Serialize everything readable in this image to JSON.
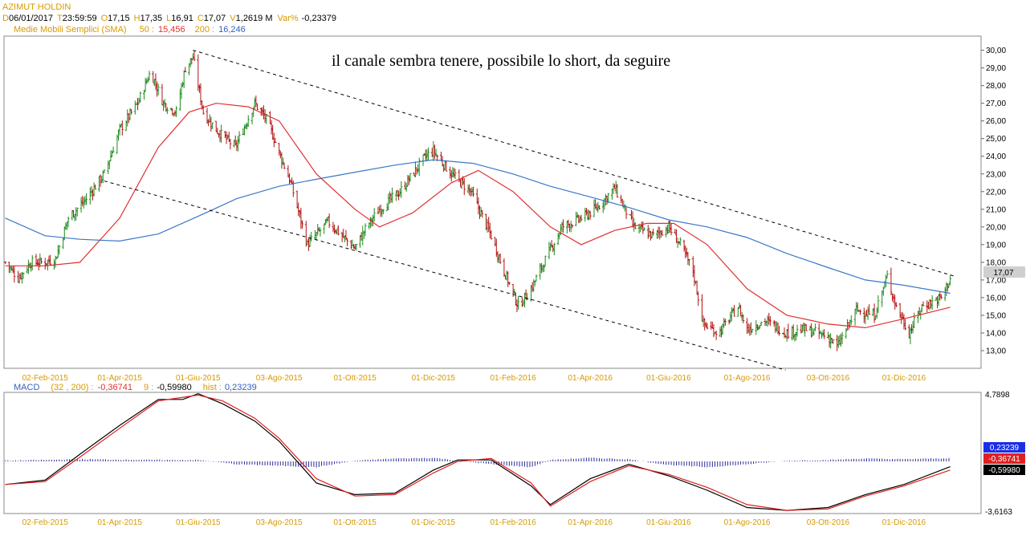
{
  "header": {
    "symbol": "AZIMUT HOLDIN",
    "d_label": "D",
    "d_value": "06/01/2017",
    "t_label": "T",
    "t_value": "23:59:59",
    "o_label": "O",
    "o_value": "17,15",
    "h_label": "H",
    "h_value": "17,35",
    "l_label": "L",
    "l_value": "16,91",
    "c_label": "C",
    "c_value": "17,07",
    "v_label": "V",
    "v_value": "1,2619 M",
    "var_label": "Var%",
    "var_value": "-0,23379",
    "sma_label": "Medie Mobili Semplici (SMA)",
    "sma50_label": "50 :",
    "sma50_value": "15,456",
    "sma200_label": "200 :",
    "sma200_value": "16,246"
  },
  "annotation": "il canale sembra tenere, possibile lo short, da seguire",
  "price_tag": "17,07",
  "macd_header": {
    "label": "MACD",
    "params": "(32 , 200) :",
    "macd_value": "-0,36741",
    "signal_param": "9 :",
    "signal_value": "-0,59980",
    "hist_label": "hist :",
    "hist_value": "0,23239"
  },
  "macd_tags": {
    "hist": "0,23239",
    "macd": "-0,36741",
    "signal": "-0,59980"
  },
  "macd_axis": {
    "top": "4,7898",
    "bottom": "-3,6163"
  },
  "colors": {
    "bar": "#1c6b1c",
    "bar_up": "#1c8a1c",
    "bar_down": "#b31111",
    "sma50": "#e03030",
    "sma200": "#3a78c8",
    "macd_line": "#000000",
    "signal_line": "#e02020",
    "histogram": "#2a2a9a",
    "label_gold": "#d89a00",
    "label_blue": "#3060c0",
    "label_red": "#e03030"
  },
  "chart_data": [
    {
      "type": "candlestick",
      "title": "AZIMUT HOLDIN",
      "x_tick_labels": [
        "02-Feb-2015",
        "01-Apr-2015",
        "01-Giu-2015",
        "03-Ago-2015",
        "01-Ott-2015",
        "01-Dic-2015",
        "01-Feb-2016",
        "01-Apr-2016",
        "01-Giu-2016",
        "01-Ago-2016",
        "03-Ott-2016",
        "01-Dic-2016"
      ],
      "y_ticks": [
        "13,00",
        "14,00",
        "15,00",
        "16,00",
        "17,00",
        "18,00",
        "19,00",
        "20,00",
        "21,00",
        "22,00",
        "23,00",
        "24,00",
        "25,00",
        "26,00",
        "27,00",
        "28,00",
        "29,00",
        "30,00"
      ],
      "ylim": [
        12.0,
        30.8
      ],
      "price_path": [
        [
          "2015-01-02",
          18.0
        ],
        [
          "2015-01-12",
          17.1
        ],
        [
          "2015-01-22",
          18.0
        ],
        [
          "2015-02-02",
          18.0
        ],
        [
          "2015-02-10",
          18.2
        ],
        [
          "2015-02-20",
          20.5
        ],
        [
          "2015-03-05",
          21.5
        ],
        [
          "2015-03-20",
          23.0
        ],
        [
          "2015-04-01",
          25.5
        ],
        [
          "2015-04-15",
          27.0
        ],
        [
          "2015-04-25",
          28.8
        ],
        [
          "2015-05-05",
          27.0
        ],
        [
          "2015-05-15",
          26.5
        ],
        [
          "2015-05-22",
          29.0
        ],
        [
          "2015-05-28",
          29.6
        ],
        [
          "2015-06-05",
          26.5
        ],
        [
          "2015-06-15",
          25.5
        ],
        [
          "2015-06-30",
          24.5
        ],
        [
          "2015-07-15",
          27.0
        ],
        [
          "2015-07-25",
          26.0
        ],
        [
          "2015-08-03",
          24.2
        ],
        [
          "2015-08-12",
          22.5
        ],
        [
          "2015-08-25",
          19.0
        ],
        [
          "2015-09-10",
          20.3
        ],
        [
          "2015-09-25",
          19.2
        ],
        [
          "2015-10-01",
          18.8
        ],
        [
          "2015-10-10",
          20.0
        ],
        [
          "2015-10-20",
          21.0
        ],
        [
          "2015-11-05",
          22.0
        ],
        [
          "2015-11-25",
          24.0
        ],
        [
          "2015-12-01",
          24.3
        ],
        [
          "2015-12-15",
          23.0
        ],
        [
          "2015-12-30",
          22.0
        ],
        [
          "2016-01-15",
          19.5
        ],
        [
          "2016-01-25",
          17.5
        ],
        [
          "2016-02-05",
          15.5
        ],
        [
          "2016-02-15",
          16.5
        ],
        [
          "2016-02-25",
          18.0
        ],
        [
          "2016-03-10",
          20.0
        ],
        [
          "2016-03-25",
          20.5
        ],
        [
          "2016-04-05",
          21.0
        ],
        [
          "2016-04-20",
          22.2
        ],
        [
          "2016-04-28",
          21.0
        ],
        [
          "2016-05-05",
          20.0
        ],
        [
          "2016-05-20",
          19.5
        ],
        [
          "2016-06-01",
          20.0
        ],
        [
          "2016-06-10",
          19.0
        ],
        [
          "2016-06-20",
          17.5
        ],
        [
          "2016-06-28",
          14.5
        ],
        [
          "2016-07-10",
          14.0
        ],
        [
          "2016-07-25",
          15.5
        ],
        [
          "2016-08-01",
          14.2
        ],
        [
          "2016-08-15",
          14.7
        ],
        [
          "2016-09-01",
          14.0
        ],
        [
          "2016-09-15",
          14.2
        ],
        [
          "2016-10-03",
          13.8
        ],
        [
          "2016-10-10",
          13.2
        ],
        [
          "2016-10-25",
          15.3
        ],
        [
          "2016-11-08",
          15.0
        ],
        [
          "2016-11-18",
          17.2
        ],
        [
          "2016-11-25",
          15.5
        ],
        [
          "2016-12-05",
          14.0
        ],
        [
          "2016-12-15",
          15.5
        ],
        [
          "2016-12-30",
          16.0
        ],
        [
          "2017-01-06",
          17.07
        ]
      ]
    },
    {
      "type": "line",
      "title": "SMA 50",
      "values": [
        [
          "2015-01-02",
          17.8
        ],
        [
          "2015-02-02",
          17.8
        ],
        [
          "2015-03-01",
          18.0
        ],
        [
          "2015-04-01",
          20.5
        ],
        [
          "2015-05-01",
          24.5
        ],
        [
          "2015-05-25",
          26.5
        ],
        [
          "2015-06-15",
          27.0
        ],
        [
          "2015-07-10",
          26.8
        ],
        [
          "2015-08-03",
          26.0
        ],
        [
          "2015-09-01",
          23.0
        ],
        [
          "2015-10-01",
          21.0
        ],
        [
          "2015-10-20",
          20.0
        ],
        [
          "2015-11-15",
          20.8
        ],
        [
          "2015-12-15",
          22.5
        ],
        [
          "2016-01-05",
          23.2
        ],
        [
          "2016-02-01",
          22.0
        ],
        [
          "2016-03-01",
          20.0
        ],
        [
          "2016-03-25",
          19.0
        ],
        [
          "2016-04-20",
          19.8
        ],
        [
          "2016-05-15",
          20.2
        ],
        [
          "2016-06-05",
          20.2
        ],
        [
          "2016-07-01",
          19.0
        ],
        [
          "2016-08-01",
          16.5
        ],
        [
          "2016-09-01",
          15.0
        ],
        [
          "2016-10-03",
          14.5
        ],
        [
          "2016-11-01",
          14.3
        ],
        [
          "2016-12-01",
          14.8
        ],
        [
          "2017-01-06",
          15.456
        ]
      ]
    },
    {
      "type": "line",
      "title": "SMA 200",
      "values": [
        [
          "2015-01-02",
          20.5
        ],
        [
          "2015-02-02",
          19.5
        ],
        [
          "2015-03-01",
          19.3
        ],
        [
          "2015-04-01",
          19.2
        ],
        [
          "2015-05-01",
          19.6
        ],
        [
          "2015-06-01",
          20.6
        ],
        [
          "2015-07-01",
          21.6
        ],
        [
          "2015-08-03",
          22.3
        ],
        [
          "2015-09-01",
          22.7
        ],
        [
          "2015-10-01",
          23.1
        ],
        [
          "2015-11-01",
          23.5
        ],
        [
          "2015-12-01",
          23.8
        ],
        [
          "2016-01-01",
          23.6
        ],
        [
          "2016-02-01",
          23.0
        ],
        [
          "2016-03-01",
          22.3
        ],
        [
          "2016-04-01",
          21.7
        ],
        [
          "2016-05-01",
          21.1
        ],
        [
          "2016-06-01",
          20.4
        ],
        [
          "2016-07-01",
          20.0
        ],
        [
          "2016-08-01",
          19.4
        ],
        [
          "2016-09-01",
          18.5
        ],
        [
          "2016-10-03",
          17.7
        ],
        [
          "2016-11-01",
          17.0
        ],
        [
          "2016-12-01",
          16.7
        ],
        [
          "2017-01-06",
          16.246
        ]
      ]
    },
    {
      "type": "line",
      "title": "MACD (32 , 200)",
      "ylim": [
        -3.6163,
        4.7898
      ],
      "values": [
        [
          "2015-01-02",
          -1.6
        ],
        [
          "2015-02-02",
          -1.3
        ],
        [
          "2015-03-01",
          0.5
        ],
        [
          "2015-04-01",
          2.5
        ],
        [
          "2015-05-01",
          4.3
        ],
        [
          "2015-05-20",
          4.3
        ],
        [
          "2015-06-01",
          4.7
        ],
        [
          "2015-06-20",
          4.0
        ],
        [
          "2015-07-15",
          2.8
        ],
        [
          "2015-08-03",
          1.4
        ],
        [
          "2015-09-01",
          -1.5
        ],
        [
          "2015-10-01",
          -2.3
        ],
        [
          "2015-11-01",
          -2.2
        ],
        [
          "2015-12-01",
          -0.6
        ],
        [
          "2015-12-20",
          0.1
        ],
        [
          "2016-01-15",
          0.1
        ],
        [
          "2016-02-15",
          -1.7
        ],
        [
          "2016-03-01",
          -3.0
        ],
        [
          "2016-04-01",
          -1.2
        ],
        [
          "2016-05-01",
          -0.2
        ],
        [
          "2016-06-01",
          -1.0
        ],
        [
          "2016-07-01",
          -2.0
        ],
        [
          "2016-08-01",
          -3.2
        ],
        [
          "2016-09-01",
          -3.4
        ],
        [
          "2016-10-03",
          -3.2
        ],
        [
          "2016-11-01",
          -2.3
        ],
        [
          "2016-12-01",
          -1.6
        ],
        [
          "2017-01-06",
          -0.36741
        ]
      ]
    },
    {
      "type": "line",
      "title": "Signal 9",
      "values": [
        [
          "2015-01-02",
          -1.6
        ],
        [
          "2015-02-02",
          -1.4
        ],
        [
          "2015-03-01",
          0.3
        ],
        [
          "2015-04-01",
          2.3
        ],
        [
          "2015-05-01",
          4.2
        ],
        [
          "2015-06-01",
          4.6
        ],
        [
          "2015-06-20",
          4.2
        ],
        [
          "2015-07-15",
          3.0
        ],
        [
          "2015-08-03",
          1.6
        ],
        [
          "2015-09-01",
          -1.2
        ],
        [
          "2015-10-01",
          -2.4
        ],
        [
          "2015-11-01",
          -2.3
        ],
        [
          "2015-12-01",
          -0.8
        ],
        [
          "2015-12-20",
          0.0
        ],
        [
          "2016-01-15",
          0.2
        ],
        [
          "2016-02-15",
          -1.5
        ],
        [
          "2016-03-01",
          -3.1
        ],
        [
          "2016-04-01",
          -1.4
        ],
        [
          "2016-05-01",
          -0.3
        ],
        [
          "2016-06-01",
          -0.9
        ],
        [
          "2016-07-01",
          -1.8
        ],
        [
          "2016-08-01",
          -3.0
        ],
        [
          "2016-09-01",
          -3.4
        ],
        [
          "2016-10-03",
          -3.3
        ],
        [
          "2016-11-01",
          -2.4
        ],
        [
          "2016-12-01",
          -1.7
        ],
        [
          "2017-01-06",
          -0.5998
        ]
      ]
    },
    {
      "type": "bar",
      "title": "hist",
      "series_path": [
        [
          "2015-01-02",
          0.05
        ],
        [
          "2015-03-01",
          0.15
        ],
        [
          "2015-05-01",
          0.1
        ],
        [
          "2015-06-01",
          0.1
        ],
        [
          "2015-07-01",
          -0.2
        ],
        [
          "2015-08-03",
          -0.3
        ],
        [
          "2015-09-01",
          -0.4
        ],
        [
          "2015-10-01",
          0.05
        ],
        [
          "2015-11-01",
          0.2
        ],
        [
          "2015-12-01",
          0.25
        ],
        [
          "2016-01-15",
          -0.2
        ],
        [
          "2016-02-15",
          -0.4
        ],
        [
          "2016-03-01",
          0.1
        ],
        [
          "2016-04-01",
          0.25
        ],
        [
          "2016-05-01",
          0.15
        ],
        [
          "2016-06-01",
          -0.25
        ],
        [
          "2016-07-01",
          -0.4
        ],
        [
          "2016-08-01",
          -0.2
        ],
        [
          "2016-09-01",
          0.05
        ],
        [
          "2016-10-03",
          0.1
        ],
        [
          "2016-11-01",
          0.2
        ],
        [
          "2016-12-01",
          0.15
        ],
        [
          "2017-01-06",
          0.23239
        ]
      ]
    }
  ]
}
